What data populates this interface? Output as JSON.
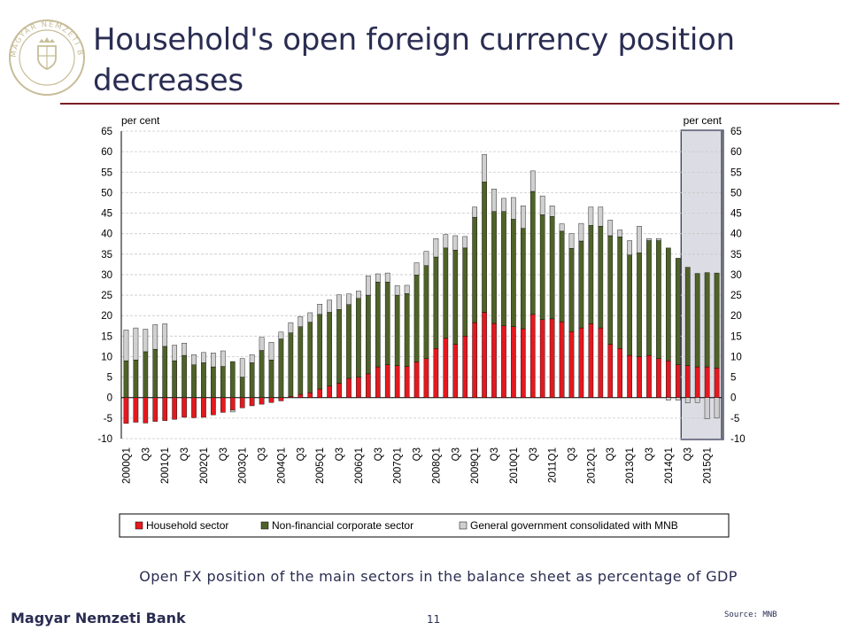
{
  "slide": {
    "title": "Household's open foreign currency position decreases",
    "caption": "Open FX position of the main sectors in the balance sheet as percentage of GDP",
    "footer_left": "Magyar Nemzeti Bank",
    "page_number": "11",
    "source": "Source: MNB"
  },
  "logo": {
    "text": "MAGYAR NEMZETI BANK",
    "color": "#c7bd98"
  },
  "chart_data": {
    "type": "bar",
    "stacked": true,
    "ylabel_left": "per cent",
    "ylabel_right": "per cent",
    "ylim": [
      -10,
      65
    ],
    "yticks": [
      -10,
      -5,
      0,
      5,
      10,
      15,
      20,
      25,
      30,
      35,
      40,
      45,
      50,
      55,
      60,
      65
    ],
    "grid": true,
    "legend_position": "bottom",
    "highlight": {
      "from": "2014Q3",
      "to": "2015Q2",
      "color": "#dcdce4"
    },
    "categories": [
      "2000Q1",
      "2000Q2",
      "2000Q3",
      "2000Q4",
      "2001Q1",
      "2001Q2",
      "2001Q3",
      "2001Q4",
      "2002Q1",
      "2002Q2",
      "2002Q3",
      "2002Q4",
      "2003Q1",
      "2003Q2",
      "2003Q3",
      "2003Q4",
      "2004Q1",
      "2004Q2",
      "2004Q3",
      "2004Q4",
      "2005Q1",
      "2005Q2",
      "2005Q3",
      "2005Q4",
      "2006Q1",
      "2006Q2",
      "2006Q3",
      "2006Q4",
      "2007Q1",
      "2007Q2",
      "2007Q3",
      "2007Q4",
      "2008Q1",
      "2008Q2",
      "2008Q3",
      "2008Q4",
      "2009Q1",
      "2009Q2",
      "2009Q3",
      "2009Q4",
      "2010Q1",
      "2010Q2",
      "2010Q3",
      "2010Q4",
      "2011Q1",
      "2011Q2",
      "2011Q3",
      "2011Q4",
      "2012Q1",
      "2012Q2",
      "2012Q3",
      "2012Q4",
      "2013Q1",
      "2013Q2",
      "2013Q3",
      "2013Q4",
      "2014Q1",
      "2014Q2",
      "2014Q3",
      "2014Q4",
      "2015Q1",
      "2015Q2"
    ],
    "tick_labels": [
      "2000Q1",
      "",
      "Q3",
      "",
      "2001Q1",
      "",
      "Q3",
      "",
      "2002Q1",
      "",
      "Q3",
      "",
      "2003Q1",
      "",
      "Q3",
      "",
      "2004Q1",
      "",
      "Q3",
      "",
      "2005Q1",
      "",
      "Q3",
      "",
      "2006Q1",
      "",
      "Q3",
      "",
      "2007Q1",
      "",
      "Q3",
      "",
      "2008Q1",
      "",
      "Q3",
      "",
      "2009Q1",
      "",
      "Q3",
      "",
      "2010Q1",
      "",
      "Q3",
      "",
      "2011Q1",
      "",
      "Q3",
      "",
      "2012Q1",
      "",
      "Q3",
      "",
      "2013Q1",
      "",
      "Q3",
      "",
      "2014Q1",
      "",
      "Q3",
      "",
      "2015Q1",
      ""
    ],
    "series": [
      {
        "name": "Household sector",
        "color": "#e3191f",
        "values": [
          -6.3,
          -6,
          -6.2,
          -5.8,
          -5.6,
          -5.3,
          -4.8,
          -4.9,
          -4.8,
          -4.2,
          -3.6,
          -3,
          -2.5,
          -2,
          -1.6,
          -1.2,
          -0.8,
          0.3,
          0.8,
          1.2,
          2.1,
          2.8,
          3.5,
          4.7,
          5,
          5.8,
          7.5,
          8,
          7.8,
          7.6,
          8.7,
          9.5,
          12,
          14.5,
          13,
          15,
          18.3,
          20.8,
          18.1,
          17.5,
          17.3,
          16.8,
          20.3,
          19,
          19.2,
          18.5,
          16.1,
          17,
          18,
          17,
          13,
          12,
          10.3,
          10,
          10.3,
          9.5,
          9,
          8,
          7.8,
          7.5,
          7.5,
          7.2
        ]
      },
      {
        "name": "Non-financial corporate sector",
        "color": "#4f6228",
        "values": [
          9,
          9.2,
          11.2,
          11.8,
          12.5,
          9,
          10.3,
          8,
          8.5,
          7.5,
          7.6,
          8.8,
          5,
          8.5,
          11.5,
          9.2,
          14.3,
          15.5,
          16.5,
          17.2,
          18.2,
          18,
          18,
          18,
          19.2,
          19.2,
          20.7,
          20.2,
          17.2,
          17.8,
          21.2,
          22.7,
          22.3,
          22,
          23,
          21.5,
          25.7,
          31.8,
          27.3,
          27.9,
          26.2,
          24.5,
          30,
          25.6,
          25,
          22.1,
          20.3,
          21.2,
          24,
          24.8,
          26.5,
          27.2,
          24.5,
          25.3,
          28,
          28.8,
          27.5,
          26,
          24,
          22.8,
          23,
          23.2
        ]
      },
      {
        "name": "General government consolidated with MNB",
        "color": "#d0d0d0",
        "values": [
          7.5,
          7.8,
          5.5,
          6,
          5.5,
          3.8,
          3,
          2.5,
          2.5,
          3.4,
          3.8,
          -0.5,
          4.5,
          2,
          3.2,
          4.3,
          1.7,
          2.5,
          2.5,
          2.3,
          2.5,
          3,
          3.6,
          2.6,
          1.8,
          4.7,
          2,
          2.2,
          2.3,
          2,
          3,
          3.5,
          4.5,
          3.3,
          3.5,
          2.8,
          2.5,
          6.7,
          5.5,
          3.2,
          5.3,
          5.5,
          5,
          4.6,
          2.6,
          1.8,
          3.6,
          4.3,
          4.5,
          4.7,
          3.8,
          1.7,
          3.5,
          6.5,
          0.5,
          0.5,
          -0.6,
          -0.6,
          -1.3,
          -1.2,
          -5.2,
          -5
        ]
      }
    ]
  }
}
